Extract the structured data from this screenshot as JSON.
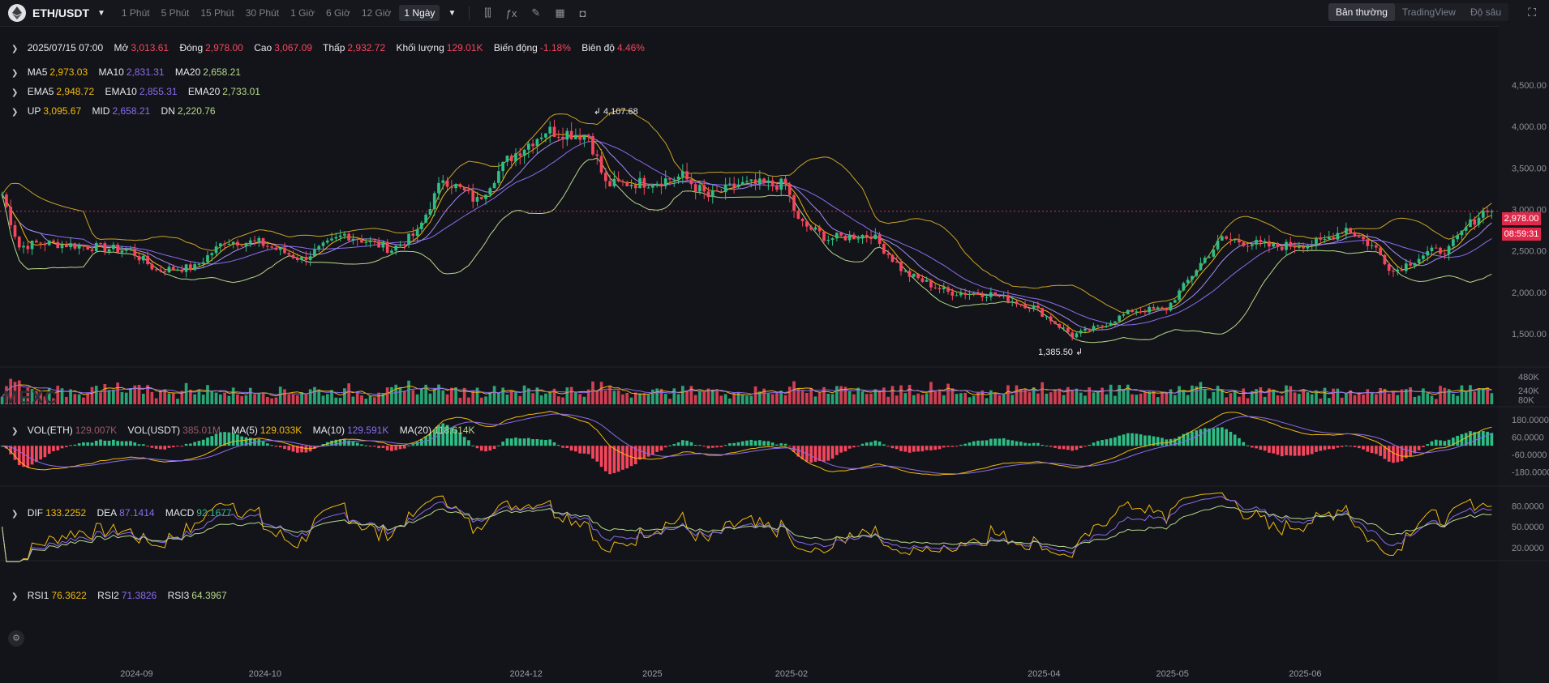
{
  "header": {
    "pair": "ETH/USDT",
    "timeframes": [
      "1 Phút",
      "5 Phút",
      "15 Phút",
      "30 Phút",
      "1 Giờ",
      "6 Giờ",
      "12 Giờ"
    ],
    "active_timeframe": "1 Ngày",
    "modes": [
      "Bản thường",
      "TradingView",
      "Độ sâu"
    ]
  },
  "ohlc": {
    "date": "2025/07/15 07:00",
    "open_label": "Mở",
    "open": "3,013.61",
    "close_label": "Đóng",
    "close": "2,978.00",
    "high_label": "Cao",
    "high": "3,067.09",
    "low_label": "Thấp",
    "low": "2,932.72",
    "vol_label": "Khối lượng",
    "vol": "129.01K",
    "change_label": "Biến động",
    "change": "-1.18%",
    "amp_label": "Biên độ",
    "amp": "4.46%"
  },
  "ma": {
    "ma5": "2,973.03",
    "ma10": "2,831.31",
    "ma20": "2,658.21"
  },
  "ema": {
    "ema5": "2,948.72",
    "ema10": "2,855.31",
    "ema20": "2,733.01"
  },
  "boll": {
    "up": "3,095.67",
    "mid": "2,658.21",
    "dn": "2,220.76"
  },
  "volume": {
    "vol_eth_label": "VOL(ETH)",
    "vol_eth": "129.007K",
    "vol_usdt_label": "VOL(USDT)",
    "vol_usdt": "385.01M",
    "ma5": "129.033K",
    "ma10": "129.591K",
    "ma20": "118.614K"
  },
  "macd": {
    "dif": "133.2252",
    "dea": "87.1414",
    "macd": "92.1677"
  },
  "rsi": {
    "rsi1": "76.3622",
    "rsi2": "71.3826",
    "rsi3": "64.3967"
  },
  "markers": {
    "high": "4,107.68",
    "low": "1,385.50"
  },
  "badge": {
    "price": "2,978.00",
    "countdown": "08:59:31"
  },
  "watermark": "MEXC",
  "colors": {
    "up": "#2ebd85",
    "down": "#f6465d",
    "ma5": "#f0b90b",
    "ma10": "#8b6cf0",
    "ma20": "#b6d88a",
    "bg": "#131419"
  },
  "chart_data": {
    "type": "candlestick",
    "price_axis": {
      "ticks": [
        4500,
        4000,
        3500,
        3000,
        2500,
        2000,
        1500
      ],
      "tick_labels": [
        "4,500.00",
        "4,000.00",
        "3,500.00",
        "3,000.00",
        "2,500.00",
        "2,000.00",
        "1,500.00"
      ],
      "range": [
        1100,
        4900
      ]
    },
    "volume_axis": {
      "tick_labels": [
        "480K",
        "240K",
        "80K"
      ],
      "ticks": [
        480,
        240,
        80
      ],
      "range": [
        0,
        650
      ]
    },
    "macd_axis": {
      "tick_labels": [
        "180.0000",
        "60.0000",
        "-60.0000",
        "-180.0000"
      ],
      "ticks": [
        180,
        60,
        -60,
        -180
      ],
      "range": [
        -260,
        240
      ]
    },
    "rsi_axis": {
      "tick_labels": [
        "80.0000",
        "50.0000",
        "20.0000"
      ],
      "ticks": [
        80,
        50,
        20
      ],
      "range": [
        5,
        100
      ]
    },
    "x_labels": [
      "2024-09",
      "2024-10",
      "2024-12",
      "2025",
      "2025-02",
      "2025-04",
      "2025-05",
      "2025-06"
    ],
    "close_anchors": [
      [
        "2024-08-01",
        3180
      ],
      [
        "2024-08-05",
        2550
      ],
      [
        "2024-08-10",
        2600
      ],
      [
        "2024-08-20",
        2560
      ],
      [
        "2024-08-31",
        2500
      ],
      [
        "2024-09-06",
        2270
      ],
      [
        "2024-09-15",
        2300
      ],
      [
        "2024-09-22",
        2620
      ],
      [
        "2024-09-30",
        2600
      ],
      [
        "2024-10-10",
        2400
      ],
      [
        "2024-10-20",
        2700
      ],
      [
        "2024-10-31",
        2520
      ],
      [
        "2024-11-06",
        2720
      ],
      [
        "2024-11-12",
        3380
      ],
      [
        "2024-11-20",
        3100
      ],
      [
        "2024-11-27",
        3600
      ],
      [
        "2024-12-06",
        3950
      ],
      [
        "2024-12-16",
        3900
      ],
      [
        "2024-12-20",
        3300
      ],
      [
        "2024-12-31",
        3330
      ],
      [
        "2025-01-07",
        3400
      ],
      [
        "2025-01-13",
        3150
      ],
      [
        "2025-01-20",
        3300
      ],
      [
        "2025-01-31",
        3300
      ],
      [
        "2025-02-03",
        2850
      ],
      [
        "2025-02-10",
        2650
      ],
      [
        "2025-02-20",
        2700
      ],
      [
        "2025-02-28",
        2230
      ],
      [
        "2025-03-10",
        2000
      ],
      [
        "2025-03-20",
        1980
      ],
      [
        "2025-03-30",
        1820
      ],
      [
        "2025-04-08",
        1480
      ],
      [
        "2025-04-15",
        1600
      ],
      [
        "2025-04-22",
        1780
      ],
      [
        "2025-04-30",
        1800
      ],
      [
        "2025-05-08",
        2350
      ],
      [
        "2025-05-13",
        2650
      ],
      [
        "2025-05-25",
        2550
      ],
      [
        "2025-06-05",
        2600
      ],
      [
        "2025-06-11",
        2780
      ],
      [
        "2025-06-18",
        2520
      ],
      [
        "2025-06-22",
        2250
      ],
      [
        "2025-06-30",
        2480
      ],
      [
        "2025-07-05",
        2520
      ],
      [
        "2025-07-09",
        2780
      ],
      [
        "2025-07-14",
        3020
      ],
      [
        "2025-07-15",
        2978
      ]
    ]
  }
}
